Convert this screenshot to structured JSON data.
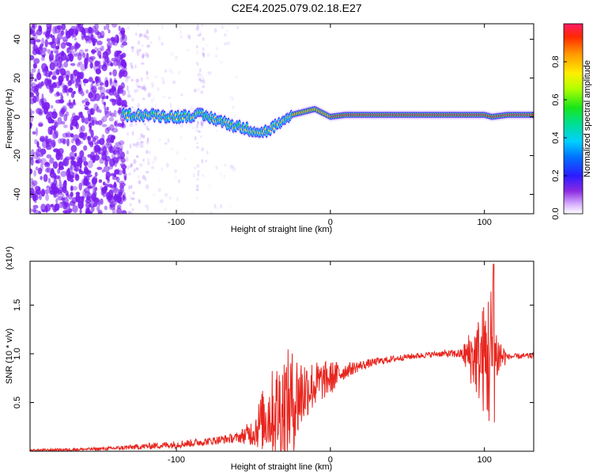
{
  "title": "C2E4.2025.079.02.18.E27",
  "colors": {
    "noise": "#7a1cf0",
    "track": "#e8261f",
    "snr_line": "#e8261f",
    "axis": "#000000"
  },
  "chart_data": [
    {
      "type": "heatmap",
      "name": "spectrogram",
      "xlabel": "Height of straight line (km)",
      "ylabel": "Frequency (Hz)",
      "xlim": [
        -195,
        132
      ],
      "ylim": [
        -50,
        48
      ],
      "xticks": [
        {
          "value": -100,
          "label": "-100"
        },
        {
          "value": 0,
          "label": "0"
        },
        {
          "value": 100,
          "label": "100"
        }
      ],
      "yticks": [
        {
          "value": 40,
          "label": "40"
        },
        {
          "value": 20,
          "label": "20"
        },
        {
          "value": 0,
          "label": "0"
        },
        {
          "value": -20,
          "label": "-20"
        },
        {
          "value": -40,
          "label": "-40"
        }
      ],
      "peak_track": {
        "x": [
          -135,
          -120,
          -100,
          -85,
          -75,
          -65,
          -55,
          -45,
          -40,
          -35,
          -30,
          -25,
          -15,
          -10,
          -5,
          0,
          10,
          20,
          40,
          60,
          80,
          90,
          100,
          105,
          115,
          132
        ],
        "freq": [
          1,
          1,
          0,
          1,
          -1,
          -4,
          -6,
          -8,
          -7,
          -4,
          -3,
          1,
          3,
          4,
          2,
          0,
          1,
          1,
          1,
          1,
          1,
          1,
          1,
          0,
          1,
          1
        ]
      },
      "colorbar": {
        "label": "Normalized spectral amplitude",
        "range": [
          0,
          1
        ],
        "ticks": [
          {
            "value": 0.0,
            "label": "0.0"
          },
          {
            "value": 0.2,
            "label": "0.2"
          },
          {
            "value": 0.4,
            "label": "0.4"
          },
          {
            "value": 0.6,
            "label": "0.6"
          },
          {
            "value": 0.8,
            "label": "0.8"
          }
        ]
      }
    },
    {
      "type": "line",
      "name": "snr",
      "xlabel": "Height of straight line (km)",
      "ylabel": "SNR (10 * v/v)",
      "y_multiplier": "(x10⁴)",
      "xlim": [
        -195,
        132
      ],
      "ylim": [
        0,
        1.95
      ],
      "xticks": [
        {
          "value": -100,
          "label": "-100"
        },
        {
          "value": 0,
          "label": "0"
        },
        {
          "value": 100,
          "label": "100"
        }
      ],
      "yticks": [
        {
          "value": 0.5,
          "label": "0.5"
        },
        {
          "value": 1.0,
          "label": "1.0"
        },
        {
          "value": 1.5,
          "label": "1.5"
        }
      ],
      "envelope": {
        "x": [
          -195,
          -160,
          -140,
          -120,
          -100,
          -80,
          -60,
          -50,
          -45,
          -40,
          -35,
          -30,
          -25,
          -20,
          -15,
          -10,
          -5,
          0,
          10,
          20,
          30,
          50,
          70,
          85,
          90,
          95,
          100,
          103,
          105,
          106,
          108,
          115,
          132
        ],
        "base": [
          0.01,
          0.02,
          0.03,
          0.05,
          0.07,
          0.1,
          0.14,
          0.2,
          0.3,
          0.38,
          0.42,
          0.45,
          0.5,
          0.58,
          0.65,
          0.68,
          0.72,
          0.75,
          0.83,
          0.88,
          0.92,
          0.97,
          1.0,
          1.0,
          0.98,
          0.95,
          0.95,
          0.95,
          0.95,
          0.95,
          0.98,
          0.97,
          0.98
        ],
        "amp": [
          0.01,
          0.015,
          0.02,
          0.03,
          0.04,
          0.04,
          0.05,
          0.15,
          0.3,
          0.4,
          0.5,
          0.6,
          0.55,
          0.45,
          0.3,
          0.25,
          0.2,
          0.18,
          0.08,
          0.05,
          0.04,
          0.03,
          0.03,
          0.05,
          0.25,
          0.4,
          0.6,
          0.8,
          0.9,
          0.8,
          0.3,
          0.03,
          0.03
        ]
      },
      "peak_value": {
        "x": 106,
        "y": 1.92
      }
    }
  ]
}
